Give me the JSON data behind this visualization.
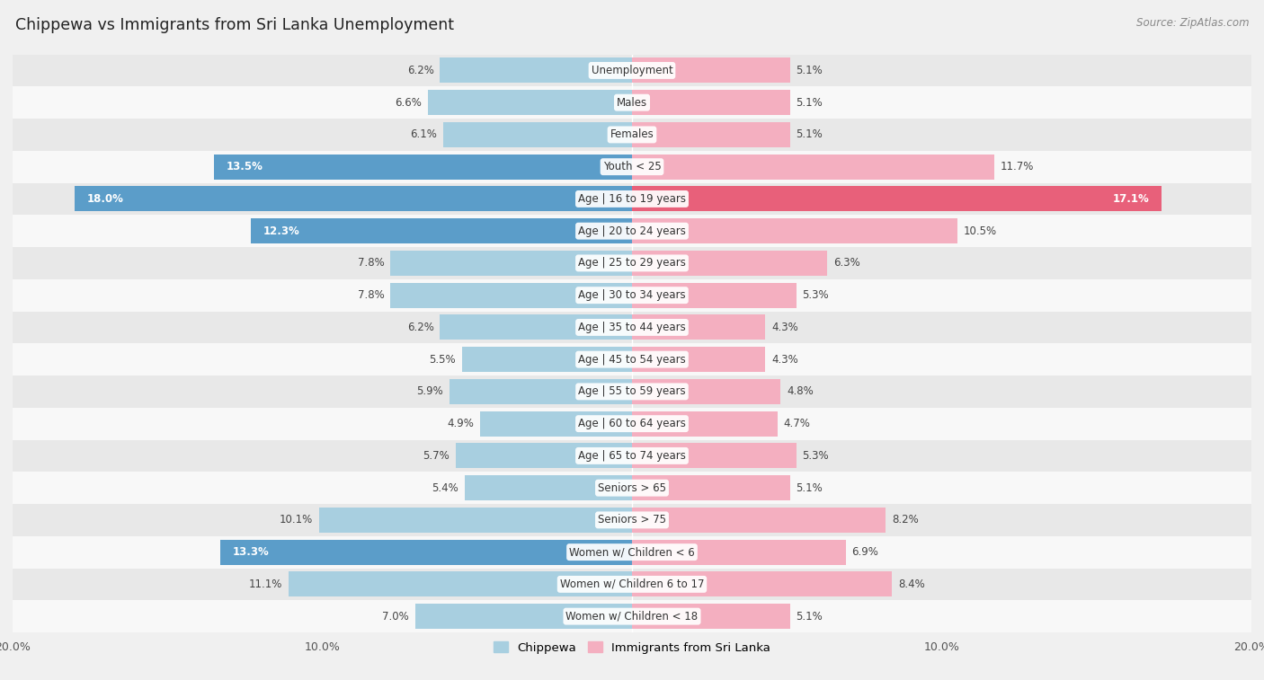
{
  "title": "Chippewa vs Immigrants from Sri Lanka Unemployment",
  "source": "Source: ZipAtlas.com",
  "categories": [
    "Unemployment",
    "Males",
    "Females",
    "Youth < 25",
    "Age | 16 to 19 years",
    "Age | 20 to 24 years",
    "Age | 25 to 29 years",
    "Age | 30 to 34 years",
    "Age | 35 to 44 years",
    "Age | 45 to 54 years",
    "Age | 55 to 59 years",
    "Age | 60 to 64 years",
    "Age | 65 to 74 years",
    "Seniors > 65",
    "Seniors > 75",
    "Women w/ Children < 6",
    "Women w/ Children 6 to 17",
    "Women w/ Children < 18"
  ],
  "chippewa": [
    6.2,
    6.6,
    6.1,
    13.5,
    18.0,
    12.3,
    7.8,
    7.8,
    6.2,
    5.5,
    5.9,
    4.9,
    5.7,
    5.4,
    10.1,
    13.3,
    11.1,
    7.0
  ],
  "sri_lanka": [
    5.1,
    5.1,
    5.1,
    11.7,
    17.1,
    10.5,
    6.3,
    5.3,
    4.3,
    4.3,
    4.8,
    4.7,
    5.3,
    5.1,
    8.2,
    6.9,
    8.4,
    5.1
  ],
  "chippewa_color": "#a8cfe0",
  "sri_lanka_color": "#f4afc0",
  "highlight_chippewa": [
    3,
    4,
    5,
    15
  ],
  "highlight_sri_lanka": [
    4
  ],
  "chippewa_highlight_color": "#5b9dc9",
  "sri_lanka_highlight_color": "#e8607a",
  "max_val": 20.0,
  "bar_height": 0.78,
  "bg_color": "#f0f0f0",
  "row_colors": [
    "#e8e8e8",
    "#f8f8f8"
  ],
  "label_fontsize": 8.5,
  "cat_fontsize": 8.5,
  "title_fontsize": 12.5
}
